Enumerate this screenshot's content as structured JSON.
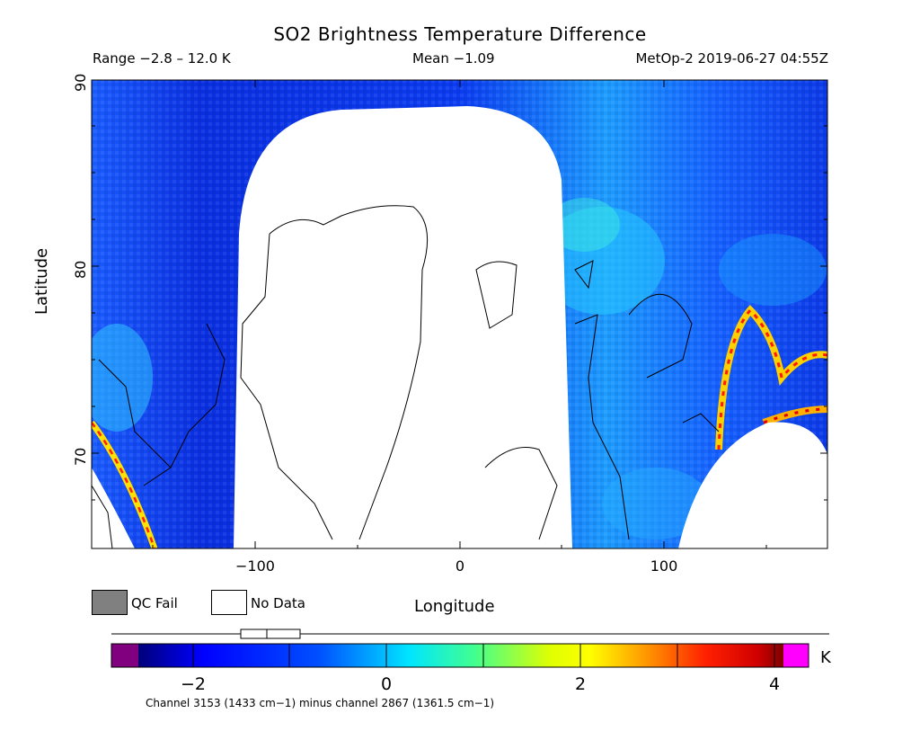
{
  "header": {
    "title": "SO2 Brightness Temperature Difference",
    "range": "Range −2.8 – 12.0 K",
    "mean": "Mean −1.09",
    "satellite": "MetOp-2 2019-06-27 04:55Z"
  },
  "map": {
    "y_axis_label": "Latitude",
    "x_axis_label": "Longitude",
    "y_ticks": [
      "90",
      "80",
      "70"
    ],
    "x_ticks": [
      "−100",
      "0",
      "100"
    ],
    "lat_range": [
      64.5,
      90
    ],
    "lon_range": [
      -180,
      180
    ],
    "no_data_regions": [
      {
        "name": "greenland-swath-gap",
        "lon_range": [
          -110,
          54
        ],
        "lat_range": [
          64.5,
          88.5
        ]
      },
      {
        "name": "east-siberia-gap",
        "center_lon": 150,
        "lat_top": 71.5
      }
    ],
    "highlights": [
      {
        "name": "west-arc",
        "description_value": "high positive BTD"
      },
      {
        "name": "east-arc",
        "description_value": "high positive BTD"
      }
    ]
  },
  "legend": {
    "qc_fail_label": "QC Fail",
    "no_data_label": "No Data",
    "qc_fail_color": "#808080",
    "no_data_color": "#ffffff"
  },
  "colorbar": {
    "min": -2.8,
    "max": 4.4,
    "ticks": [
      "−2",
      "0",
      "2",
      "4"
    ],
    "tick_values": [
      -2,
      0,
      2,
      4
    ],
    "unit": "K",
    "colors": [
      "#800080",
      "#00007a",
      "#0000ff",
      "#0070ff",
      "#00e0ff",
      "#40ff80",
      "#c0ff00",
      "#ffff00",
      "#ffa000",
      "#ff3000",
      "#e00000",
      "#800000",
      "#ff00ff"
    ]
  },
  "footnote": {
    "channel": "Channel 3153 (1433 cm−1) minus channel 2867 (1361.5 cm−1)"
  }
}
